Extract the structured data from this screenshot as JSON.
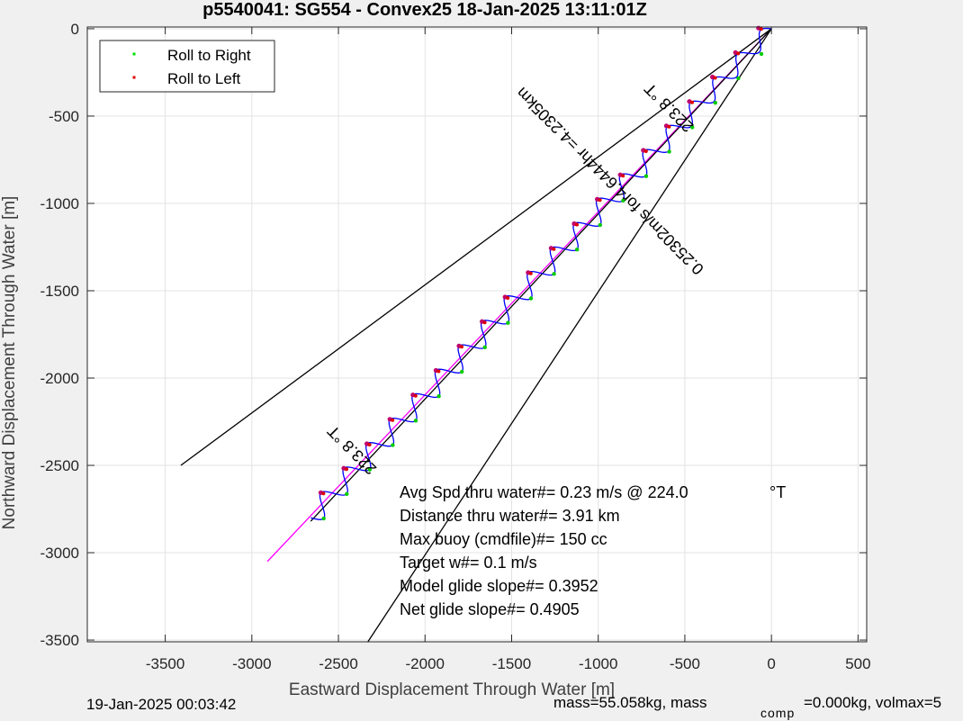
{
  "chart_data": {
    "type": "line",
    "title": "p5540041: SG554 - Convex25 18-Jan-2025 13:11:01Z",
    "xlabel": "Eastward Displacement Through Water [m]",
    "ylabel": "Northward Displacement Through Water [m]",
    "xlim": [
      -3950,
      550
    ],
    "ylim": [
      -3510,
      10
    ],
    "xticks": [
      -3500,
      -3000,
      -2500,
      -2000,
      -1500,
      -1000,
      -500,
      0,
      500
    ],
    "yticks": [
      0,
      -500,
      -1000,
      -1500,
      -2000,
      -2500,
      -3000,
      -3500
    ],
    "grid": true,
    "legend_position": "top-left",
    "legend": [
      {
        "label": "Roll to Right",
        "color": "#00e000"
      },
      {
        "label": "Roll to Left",
        "color": "#e00000"
      }
    ],
    "series": [
      {
        "color": "#0000ff",
        "style": "wavy glider track",
        "start": [
          0,
          0
        ],
        "end": [
          -2660,
          -2800
        ],
        "waves": 20
      },
      {
        "color": "#ff00ff",
        "x": [
          0,
          -2910
        ],
        "y": [
          0,
          -3050
        ]
      },
      {
        "color": "#000000",
        "x": [
          0,
          -2660
        ],
        "y": [
          0,
          -2820
        ]
      },
      {
        "color": "#000000",
        "x": [
          0,
          -3410
        ],
        "y": [
          0,
          -2500
        ]
      },
      {
        "color": "#000000",
        "x": [
          0,
          -2330
        ],
        "y": [
          0,
          -3510
        ]
      }
    ],
    "rotated_labels": [
      {
        "text": "0.2530",
        "unit": "2m/s for4.6444hr =4.2305km",
        "x": -910,
        "y": -850,
        "angle": 225
      },
      {
        "text": "223.8 °T",
        "x": -570,
        "y": -430,
        "angle": 225
      },
      {
        "text": "223.8 °T",
        "x": -2400,
        "y": -2390,
        "angle": 225
      }
    ],
    "annotations": [
      "Avg Spd thru water#=  0.23 m/s @ 224.0",
      "Distance thru water#=  3.91 km",
      "Max buoy (cmdfile)#= 150 cc",
      "Target w#= 0.1 m/s",
      "Model glide slope#= 0.3952",
      "Net glide slope#= 0.4905"
    ],
    "annotation_unit": "°T"
  },
  "footer": {
    "left": "19-Jan-2025 00:03:42",
    "right_main": "mass=55.058kg, mass",
    "right_sub": "comp",
    "right_tail": "=0.000kg, volmax=5"
  }
}
